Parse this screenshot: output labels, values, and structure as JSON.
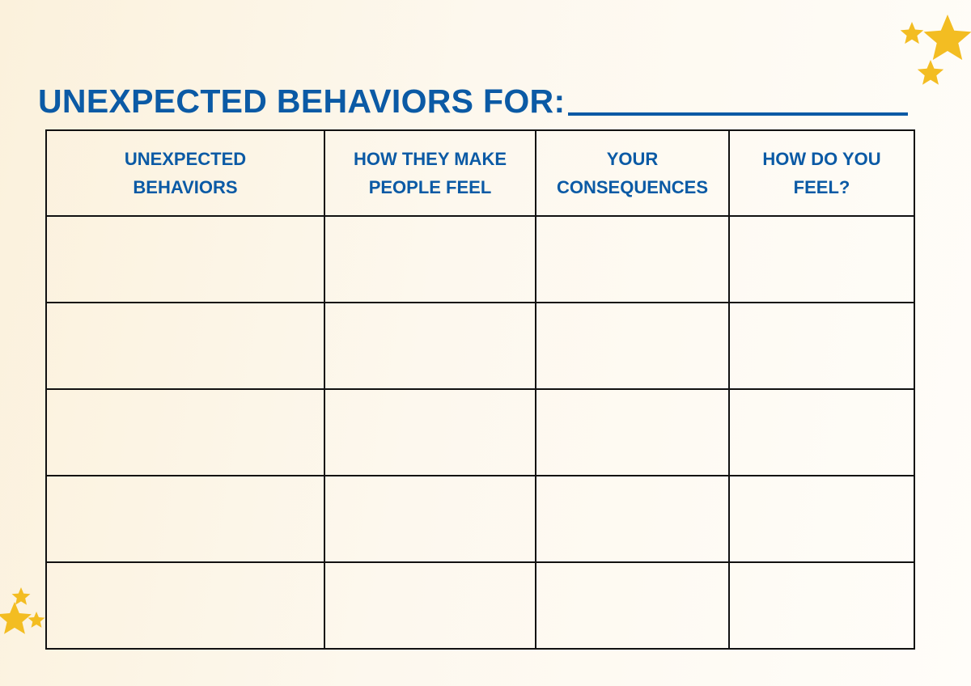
{
  "colors": {
    "brand": "#0b5aa5",
    "star": "#f3bd22",
    "grid": "#111111"
  },
  "worksheet": {
    "title": "UNEXPECTED BEHAVIORS FOR:",
    "columns": [
      {
        "line1": "UNEXPECTED",
        "line2": "BEHAVIORS"
      },
      {
        "line1": "HOW THEY MAKE",
        "line2": "PEOPLE FEEL"
      },
      {
        "line1": "YOUR",
        "line2": "CONSEQUENCES"
      },
      {
        "line1": "HOW DO YOU",
        "line2": "FEEL?"
      }
    ],
    "blank_rows": 5
  },
  "decorations": {
    "top_right_stars_icon": "star-icon",
    "bottom_left_stars_icon": "star-icon"
  }
}
